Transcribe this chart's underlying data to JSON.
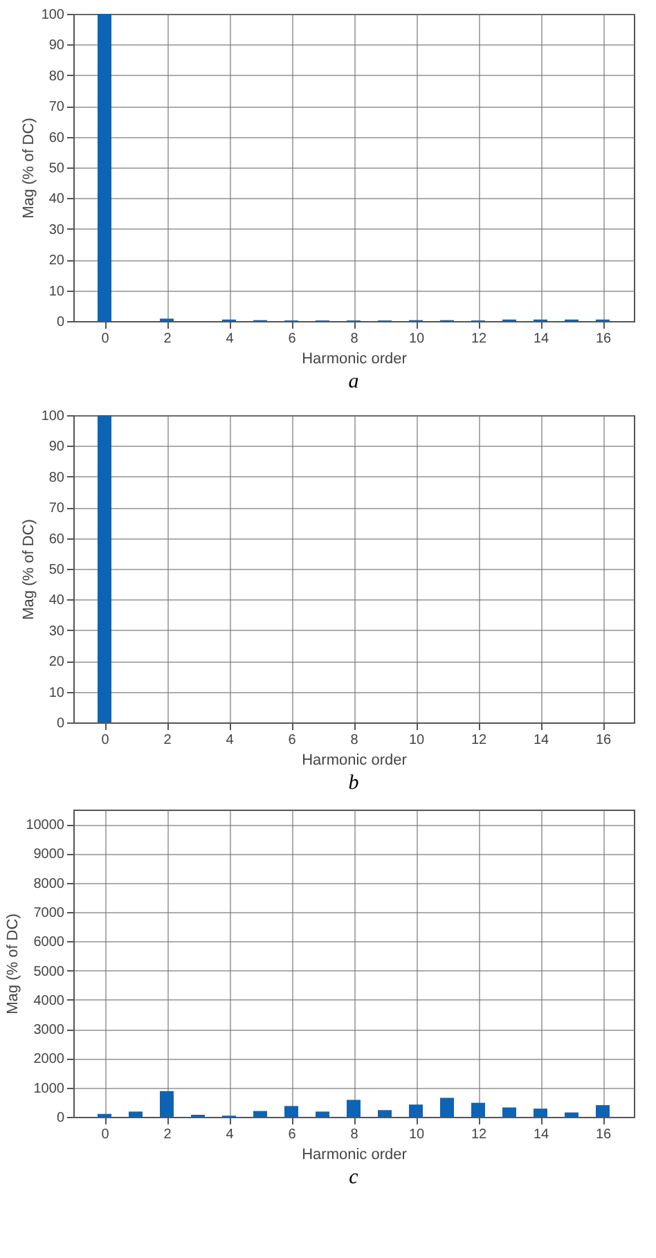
{
  "chart_data": [
    {
      "type": "bar",
      "x": [
        0,
        1,
        2,
        3,
        4,
        5,
        6,
        7,
        8,
        9,
        10,
        11,
        12,
        13,
        14,
        15,
        16
      ],
      "values": [
        100,
        0,
        0.8,
        0,
        0.5,
        0.3,
        0.2,
        0.2,
        0.2,
        0.2,
        0.3,
        0.3,
        0.2,
        0.5,
        0.5,
        0.5,
        0.5
      ],
      "color": "#0e64b4",
      "xlim": [
        -1,
        17
      ],
      "xticks": [
        0,
        2,
        4,
        6,
        8,
        10,
        12,
        14,
        16
      ],
      "ylim": [
        0,
        100
      ],
      "yticks": [
        0,
        10,
        20,
        30,
        40,
        50,
        60,
        70,
        80,
        90,
        100
      ],
      "xlabel": "Harmonic order",
      "ylabel": "Mag (% of DC)",
      "grid": true,
      "annotations": [
        "a"
      ]
    },
    {
      "type": "bar",
      "x": [
        0,
        1,
        2,
        3,
        4,
        5,
        6,
        7,
        8,
        9,
        10,
        11,
        12,
        13,
        14,
        15,
        16
      ],
      "values": [
        100,
        0,
        0,
        0,
        0,
        0,
        0,
        0,
        0,
        0,
        0,
        0,
        0,
        0,
        0,
        0,
        0
      ],
      "color": "#0e64b4",
      "xlim": [
        -1,
        17
      ],
      "xticks": [
        0,
        2,
        4,
        6,
        8,
        10,
        12,
        14,
        16
      ],
      "ylim": [
        0,
        100
      ],
      "yticks": [
        0,
        10,
        20,
        30,
        40,
        50,
        60,
        70,
        80,
        90,
        100
      ],
      "xlabel": "Harmonic order",
      "ylabel": "Mag (% of DC)",
      "grid": true,
      "annotations": [
        "b"
      ]
    },
    {
      "type": "bar",
      "x": [
        0,
        1,
        2,
        3,
        4,
        5,
        6,
        7,
        8,
        9,
        10,
        11,
        12,
        13,
        14,
        15,
        16
      ],
      "values": [
        100,
        180,
        880,
        70,
        40,
        200,
        370,
        180,
        580,
        230,
        420,
        650,
        480,
        320,
        280,
        150,
        400
      ],
      "color": "#0e64b4",
      "xlim": [
        -1,
        17
      ],
      "xticks": [
        0,
        2,
        4,
        6,
        8,
        10,
        12,
        14,
        16
      ],
      "ylim": [
        0,
        10500
      ],
      "yticks": [
        0,
        1000,
        2000,
        3000,
        4000,
        5000,
        6000,
        7000,
        8000,
        9000,
        10000
      ],
      "xlabel": "Harmonic order",
      "ylabel": "Mag (% of DC)",
      "grid": true,
      "annotations": [
        "c"
      ]
    }
  ]
}
